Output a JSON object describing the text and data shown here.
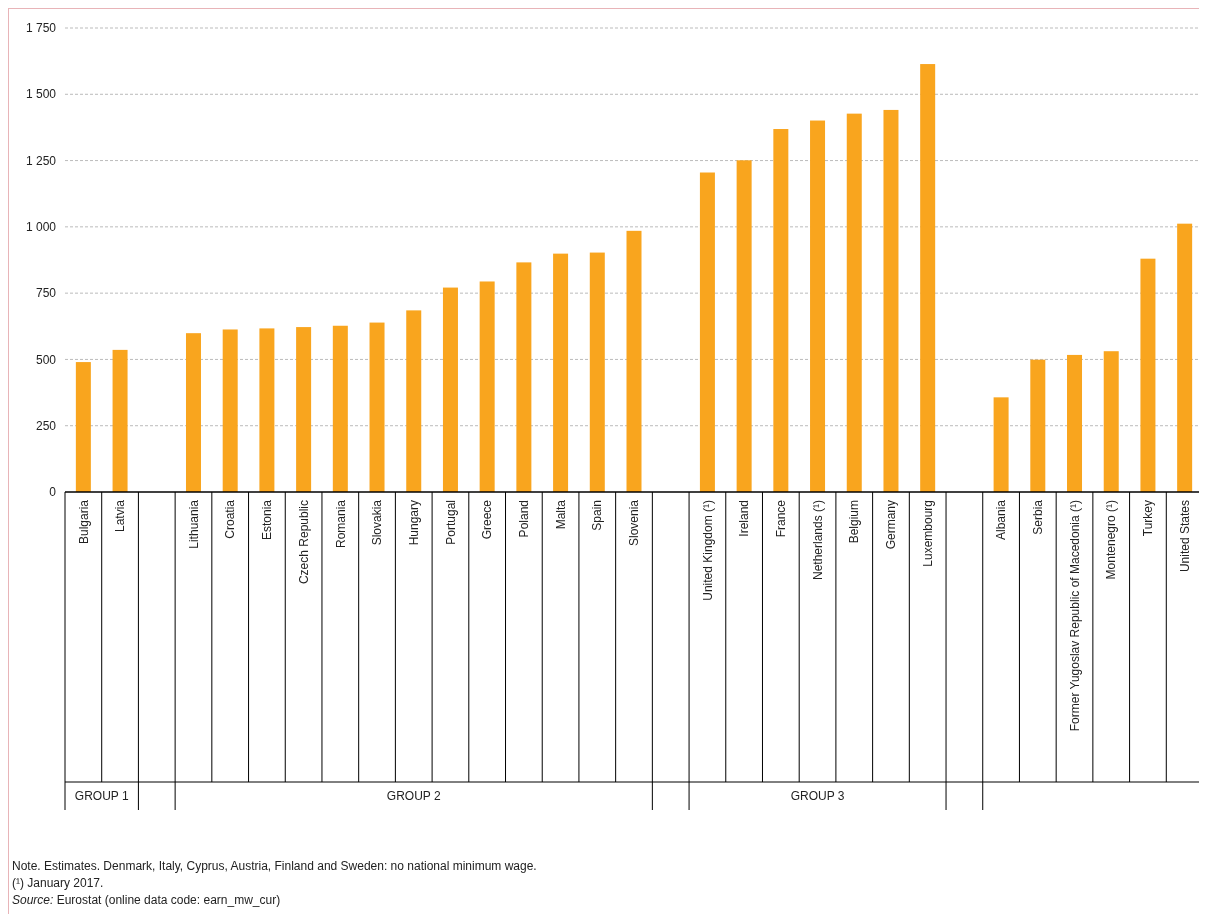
{
  "chart_data": {
    "type": "bar",
    "categories": [
      "Bulgaria",
      "Latvia",
      null,
      "Lithuania",
      "Croatia",
      "Estonia",
      "Czech Republic",
      "Romania",
      "Slovakia",
      "Hungary",
      "Portugal",
      "Greece",
      "Poland",
      "Malta",
      "Spain",
      "Slovenia",
      null,
      "United Kingdom (¹)",
      "Ireland",
      "France",
      "Netherlands (¹)",
      "Belgium",
      "Germany",
      "Luxembourg",
      null,
      "Albania",
      "Serbia",
      "Former Yugoslav Republic of Macedonia (¹)",
      "Montenegro (¹)",
      "Turkey",
      "United States"
    ],
    "values": [
      490,
      536,
      null,
      599,
      613,
      617,
      622,
      627,
      639,
      685,
      771,
      794,
      866,
      899,
      903,
      985,
      null,
      1205,
      1251,
      1369,
      1401,
      1427,
      1441,
      1614,
      null,
      357,
      499,
      517,
      531,
      880,
      1012
    ],
    "color": "#f9a51e",
    "ylim": [
      0,
      1750
    ],
    "yticks": [
      0,
      250,
      500,
      750,
      {
        "value": 1000,
        "label": "1 000"
      },
      {
        "value": 1250,
        "label": "1 250"
      },
      {
        "value": 1500,
        "label": "1 500"
      },
      {
        "value": 1750,
        "label": "1 750"
      }
    ],
    "grid": "y",
    "annotations": [
      "GROUP 1",
      "GROUP 2",
      "GROUP 3",
      "Note. Estimates. Denmark, Italy, Cyprus, Austria, Finland and Sweden: no national minimum wage.",
      "(¹) January 2017.",
      "Source: Eurostat (online data code: earn_mw_cur)"
    ]
  }
}
